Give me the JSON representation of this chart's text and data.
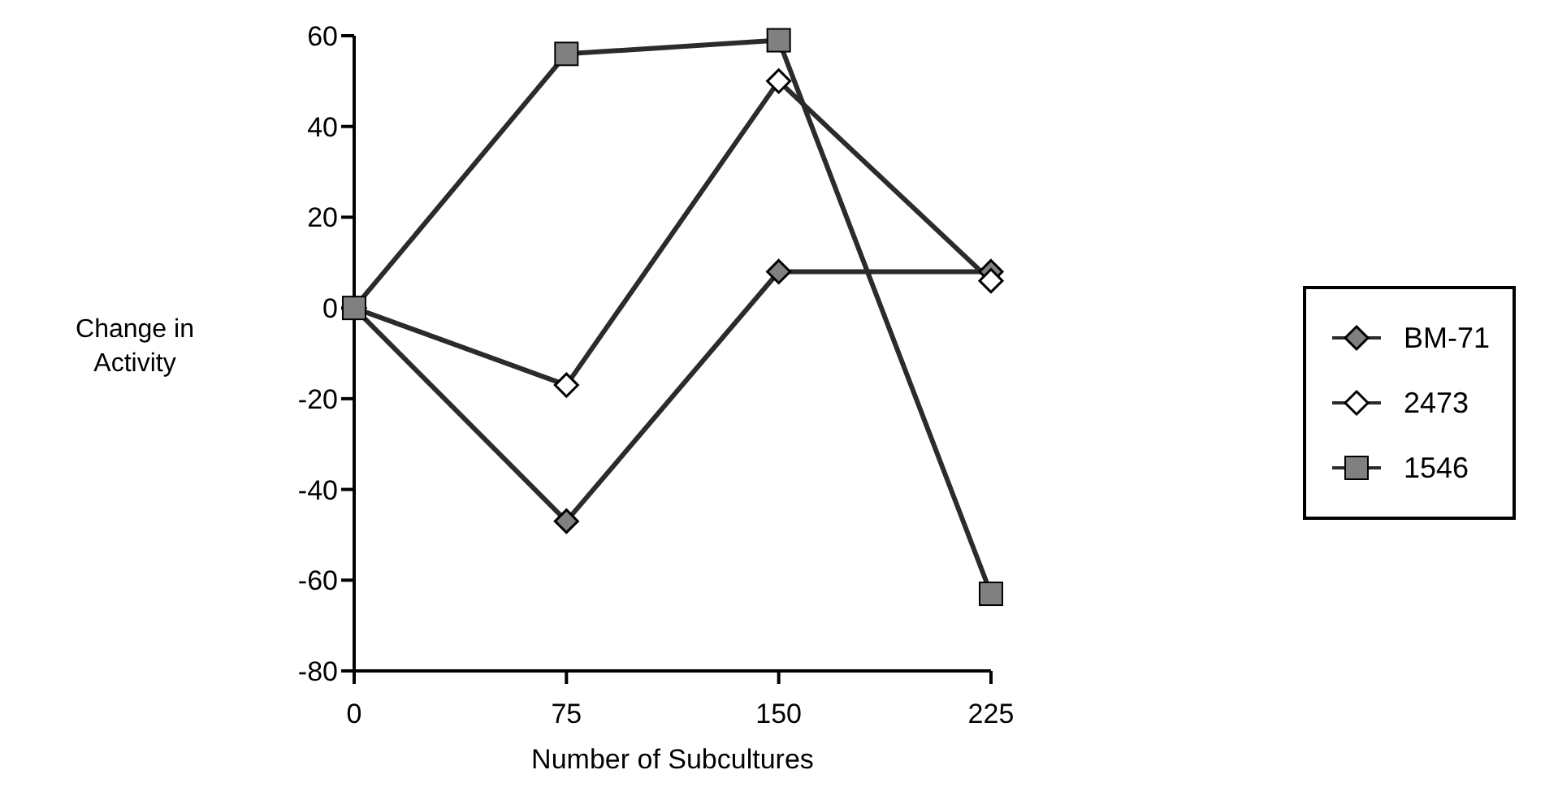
{
  "chart_data": {
    "type": "line",
    "xlabel": "Number of Subcultures",
    "ylabel": "Change in\nActivity",
    "x": [
      0,
      75,
      150,
      225
    ],
    "xlim": [
      0,
      225
    ],
    "xticks": [
      0,
      75,
      150,
      225
    ],
    "ylim": [
      -80,
      60
    ],
    "yticks": [
      -80,
      -60,
      -40,
      -20,
      0,
      20,
      40,
      60
    ],
    "series": [
      {
        "name": "BM-71",
        "color": "#808080",
        "marker": "diamond",
        "values": [
          0,
          -47,
          8,
          8
        ]
      },
      {
        "name": "2473",
        "color": "#ffffff",
        "marker": "diamond",
        "values": [
          0,
          -17,
          50,
          6
        ]
      },
      {
        "name": "1546",
        "color": "#808080",
        "marker": "square",
        "values": [
          0,
          56,
          59,
          -63
        ]
      }
    ],
    "grid": false,
    "legend": "right",
    "line_style": "solid"
  }
}
